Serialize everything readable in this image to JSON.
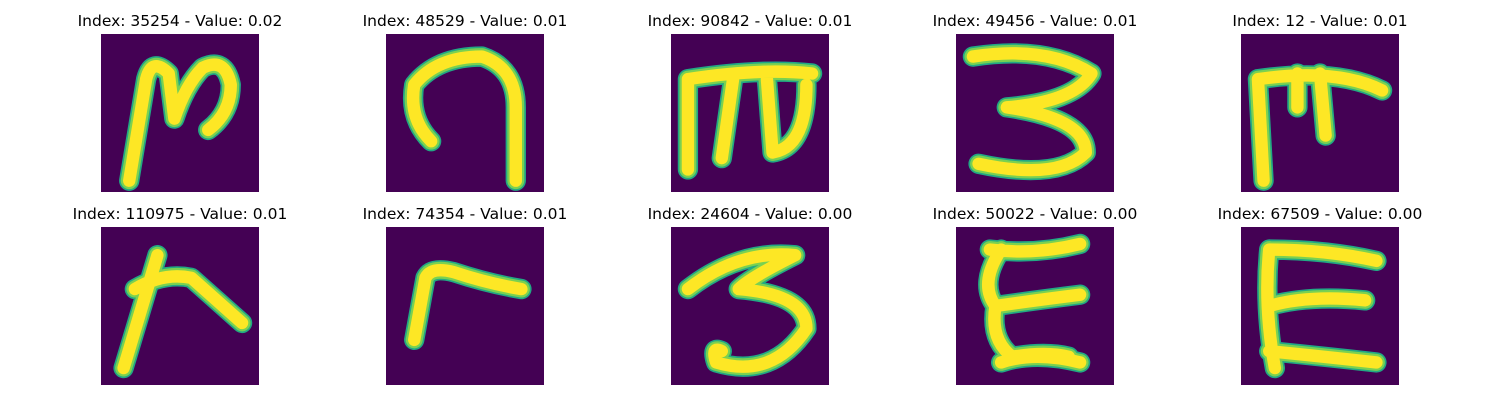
{
  "colors": {
    "background": "#440154",
    "stroke_core": "#fde725",
    "stroke_mid": "#7ad151",
    "stroke_edge": "#22a884"
  },
  "panels": [
    {
      "title": "Index: 35254 - Value: 0.02",
      "glyph": "handwritten-n-like-character"
    },
    {
      "title": "Index: 48529 - Value: 0.01",
      "glyph": "handwritten-inverted-u-character"
    },
    {
      "title": "Index: 90842 - Value: 0.01",
      "glyph": "handwritten-m-character"
    },
    {
      "title": "Index: 49456 - Value: 0.01",
      "glyph": "handwritten-3-character"
    },
    {
      "title": "Index: 12 - Value: 0.01",
      "glyph": "handwritten-m-variant-character"
    },
    {
      "title": "Index: 110975 - Value: 0.01",
      "glyph": "handwritten-k-like-character"
    },
    {
      "title": "Index: 74354 - Value: 0.01",
      "glyph": "handwritten-r-character"
    },
    {
      "title": "Index: 24604 - Value: 0.00",
      "glyph": "handwritten-3-character"
    },
    {
      "title": "Index: 50022 - Value: 0.00",
      "glyph": "handwritten-xi-like-character"
    },
    {
      "title": "Index: 67509 - Value: 0.00",
      "glyph": "handwritten-e-character"
    }
  ]
}
